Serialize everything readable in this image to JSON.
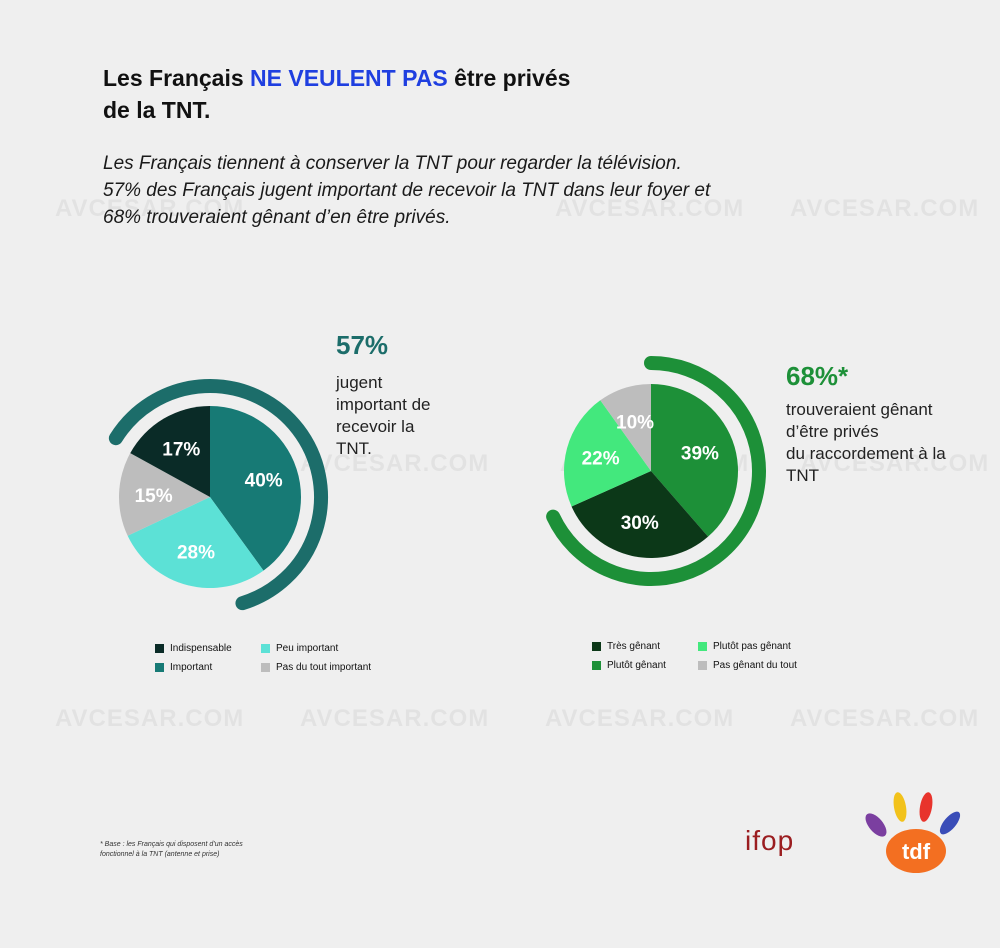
{
  "headline": {
    "prefix": "Les Français ",
    "accent": "NE VEULENT PAS",
    "suffix_line1": " être privés",
    "line2": "de la TNT."
  },
  "intro": {
    "lines": [
      "Les Français tiennent à conserver la TNT pour regarder la télévision.",
      "57% des Français jugent important de recevoir la TNT dans leur foyer et",
      "68% trouveraient gênant d’en être privés."
    ]
  },
  "watermark_text": "AVCESAR.COM",
  "chart_data": [
    {
      "type": "pie",
      "headline_value": "57%",
      "headline_text": [
        "jugent",
        "important de",
        "recevoir la",
        "TNT."
      ],
      "ring_color": "#1c6d6a",
      "slices": [
        {
          "label": "Important",
          "value": 40,
          "value_label": "40%",
          "color": "#177a75"
        },
        {
          "label": "Peu important",
          "value": 28,
          "value_label": "28%",
          "color": "#5ce1d6"
        },
        {
          "label": "Pas du tout important",
          "value": 15,
          "value_label": "15%",
          "color": "#bdbdbd"
        },
        {
          "label": "Indispensable",
          "value": 17,
          "value_label": "17%",
          "color": "#0a2b27"
        }
      ],
      "legend": [
        {
          "label": "Indispensable",
          "color": "#0a2b27"
        },
        {
          "label": "Peu important",
          "color": "#5ce1d6"
        },
        {
          "label": "Important",
          "color": "#177a75"
        },
        {
          "label": "Pas du tout important",
          "color": "#bdbdbd"
        }
      ],
      "legend_placement": "bottom"
    },
    {
      "type": "pie",
      "headline_value": "68%*",
      "headline_text": [
        "trouveraient gênant",
        "d’être privés",
        "du raccordement à la",
        "TNT"
      ],
      "ring_color": "#1d9038",
      "slices": [
        {
          "label": "Plutôt gênant",
          "value": 39,
          "value_label": "39%",
          "color": "#1d9038"
        },
        {
          "label": "Très gênant",
          "value": 30,
          "value_label": "30%",
          "color": "#0c3818"
        },
        {
          "label": "Plutôt pas gênant",
          "value": 22,
          "value_label": "22%",
          "color": "#43e87d"
        },
        {
          "label": "Pas gênant du tout",
          "value": 10,
          "value_label": "10%",
          "color": "#bdbdbd"
        }
      ],
      "legend": [
        {
          "label": "Très gênant",
          "color": "#0c3818"
        },
        {
          "label": "Plutôt pas gênant",
          "color": "#43e87d"
        },
        {
          "label": "Plutôt gênant",
          "color": "#1d9038"
        },
        {
          "label": "Pas gênant du tout",
          "color": "#bdbdbd"
        }
      ],
      "legend_placement": "bottom"
    }
  ],
  "footnote": [
    "* Base : les Français qui disposent d’un accès",
    "fonctionnel à la TNT (antenne et prise)"
  ],
  "logos": {
    "ifop": "ifop",
    "tdf": "tdf"
  },
  "colors": {
    "accent": "#1f3fe0",
    "teal": "#1c6d6a",
    "green": "#1d9038",
    "ifop_red": "#9b1d20",
    "tdf_orange": "#f36f21"
  }
}
